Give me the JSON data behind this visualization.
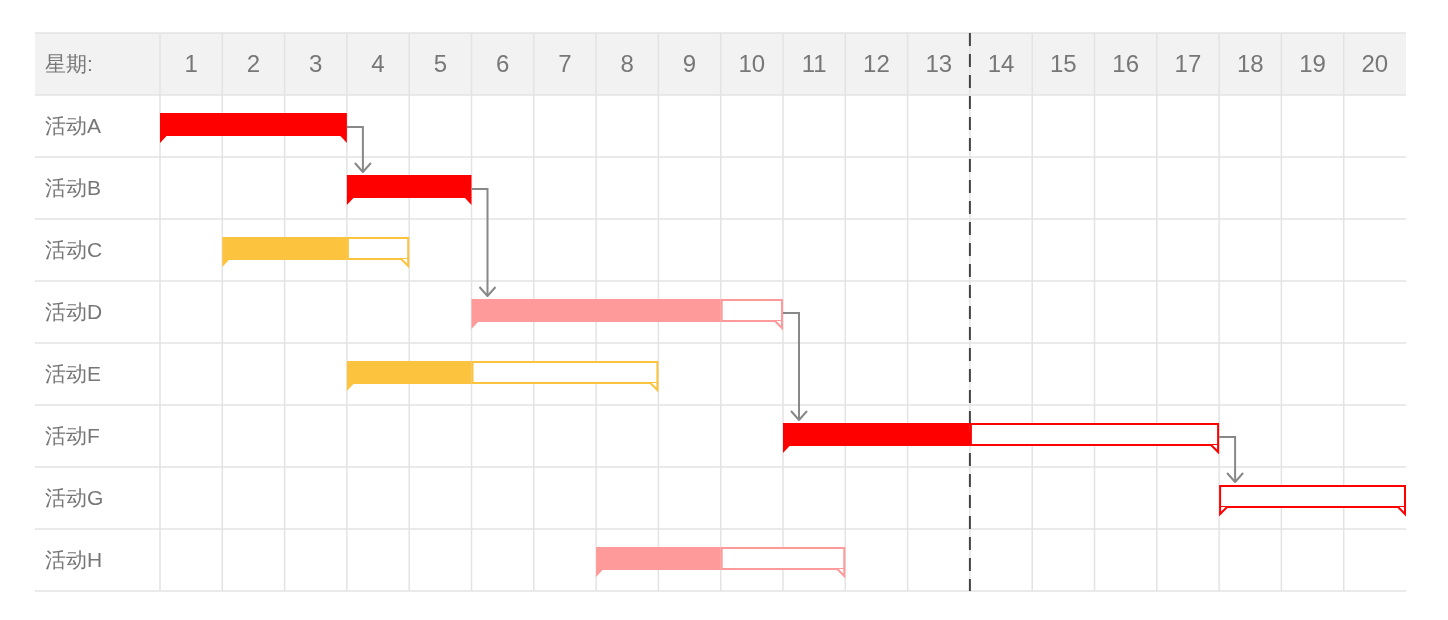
{
  "chart_data": {
    "type": "bar",
    "orientation": "horizontal",
    "xlabel": "星期:",
    "categories": [
      "活动A",
      "活动B",
      "活动C",
      "活动D",
      "活动E",
      "活动F",
      "活动G",
      "活动H"
    ],
    "series": [
      {
        "colors": [
          "#ff0000",
          "#ff0000",
          "#fcc43e",
          "#ff9a9a",
          "#fcc43e",
          "#ff0000",
          null,
          "#ff9a9a"
        ],
        "base": [
          0.5,
          3.5,
          1.5,
          5.5,
          3.5,
          10.5,
          null,
          7.5
        ],
        "values": [
          3,
          2,
          2,
          4,
          2,
          3,
          null,
          2
        ]
      },
      {
        "colors": [
          null,
          null,
          "#fcc43e",
          "#ff9a9a",
          "#fcc43e",
          "#ff0000",
          "#ff0000",
          "#ff9a9a"
        ],
        "base": [
          null,
          null,
          3.5,
          9.5,
          5.5,
          13.5,
          17.5,
          9.5
        ],
        "values": [
          null,
          null,
          1,
          1,
          3,
          4,
          3,
          2
        ]
      }
    ],
    "xlim": [
      0.5,
      20.5
    ],
    "xticks": [
      1,
      2,
      3,
      4,
      5,
      6,
      7,
      8,
      9,
      10,
      11,
      12,
      13,
      14,
      15,
      16,
      17,
      18,
      19,
      20
    ],
    "grid": true,
    "ref_lines": [
      {
        "axis": "x",
        "value": 13.5,
        "color": "#444444",
        "line_style": "dashed"
      }
    ]
  }
}
